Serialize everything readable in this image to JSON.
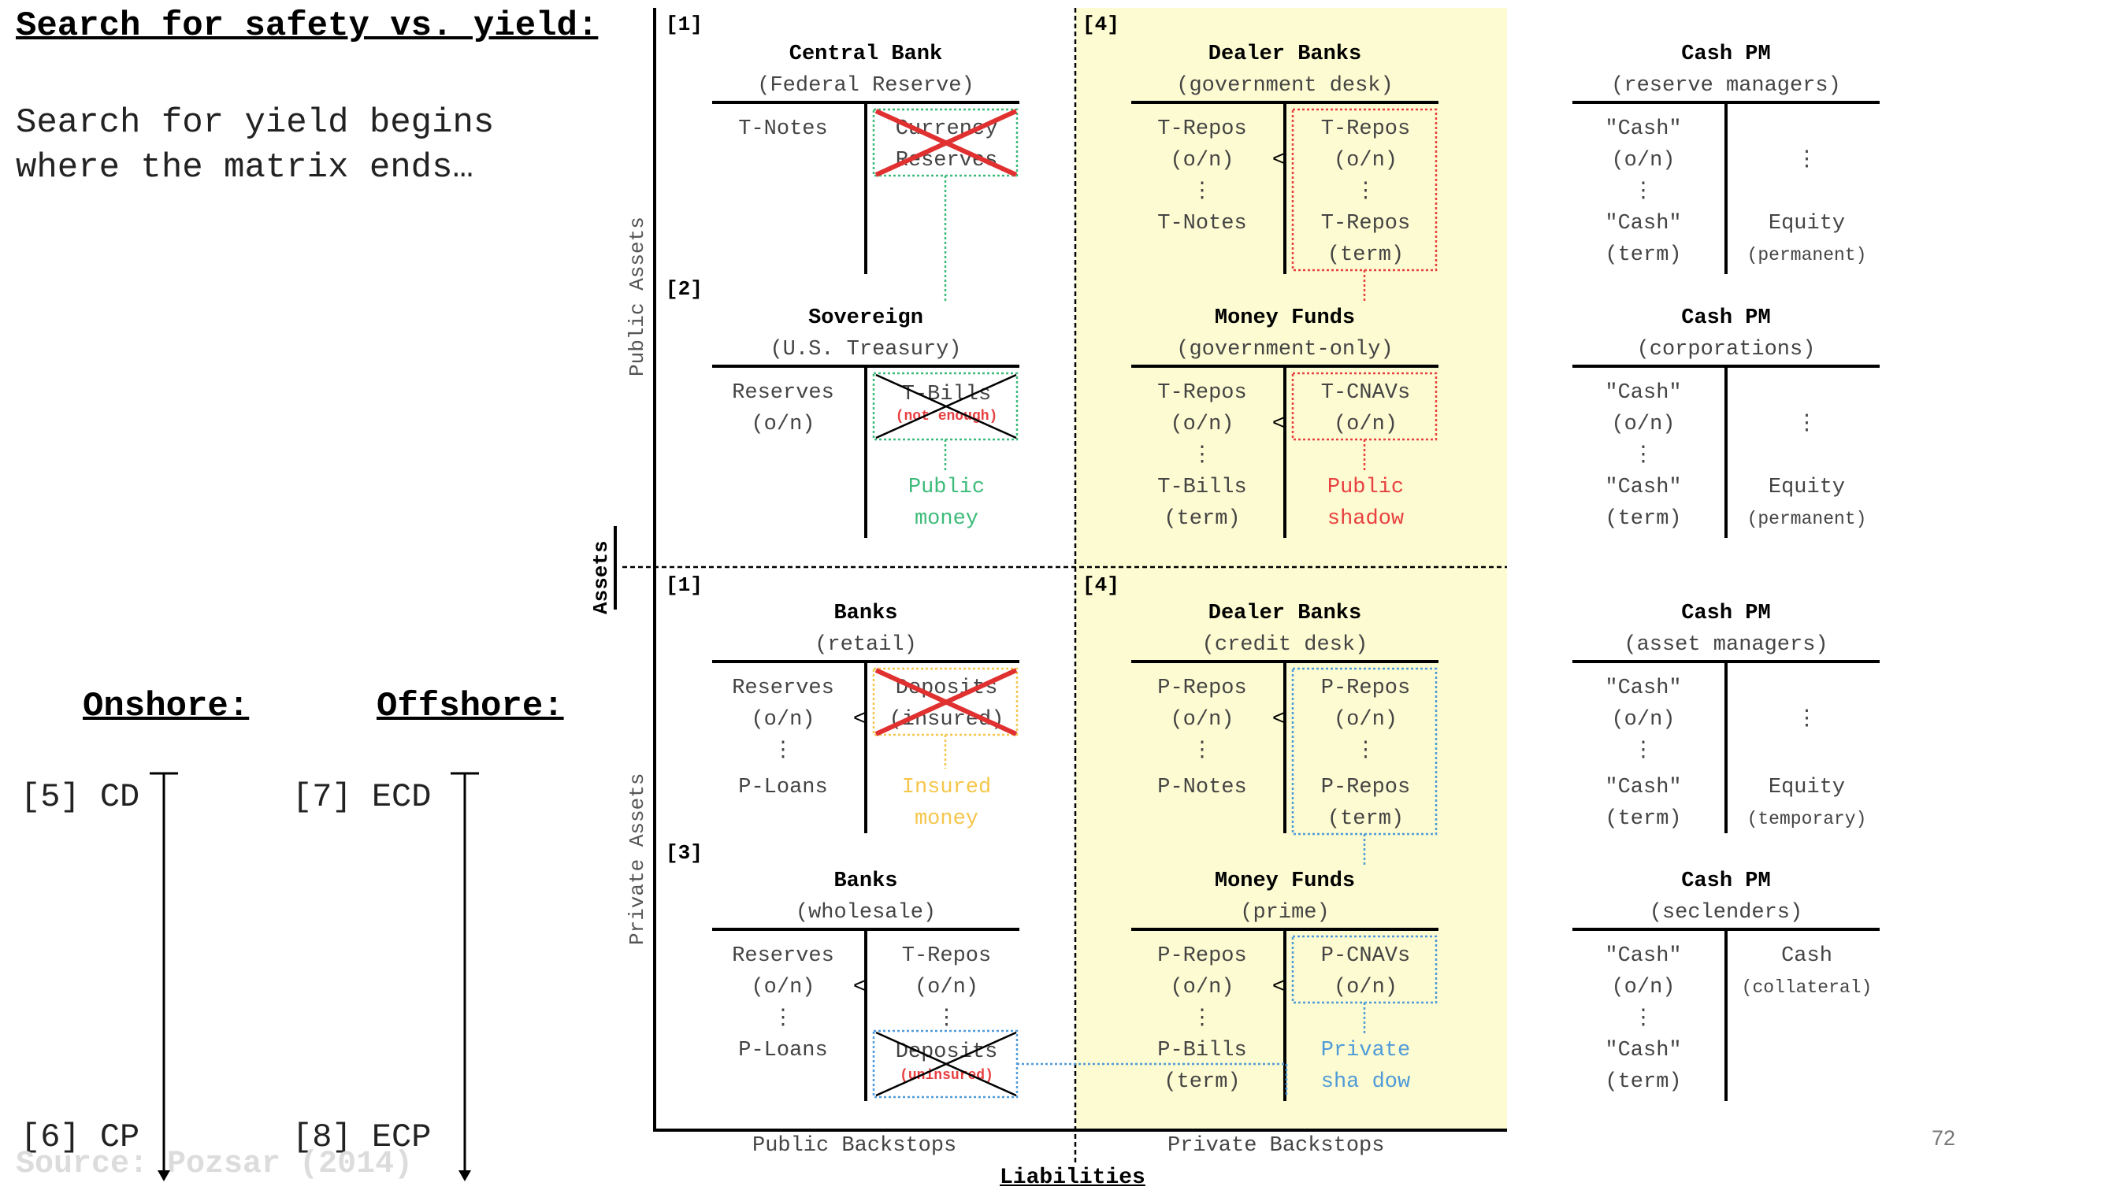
{
  "title": "Search for safety vs. yield:",
  "subtitle": "Search for yield begins\nwhere the matrix ends…",
  "source": "Source: Pozsar (2014)",
  "page_number": "72",
  "onshore": {
    "heading": "Onshore:",
    "top": "[5] CD",
    "bottom": "[6] CP"
  },
  "offshore": {
    "heading": "Offshore:",
    "top": "[7] ECD",
    "bottom": "[8] ECP"
  },
  "axes": {
    "assets": "Assets",
    "public_assets": "Public Assets",
    "private_assets": "Private Assets",
    "liabilities": "Liabilities",
    "public_backstops": "Public Backstops",
    "private_backstops": "Private Backstops"
  },
  "tags": {
    "t1": "[1]",
    "t2": "[2]",
    "t4": "[4]",
    "t1b": "[1]",
    "t4b": "[4]",
    "t3": "[3]"
  },
  "colors": {
    "highlight": "#fdfbd1",
    "green": "#3dbb7a",
    "red": "#e84040",
    "orange": "#f5c64a",
    "blue": "#4f9bd9"
  },
  "sheets": {
    "central_bank": {
      "title": "Central Bank",
      "sub": "(Federal Reserve)",
      "a1": "T-Notes",
      "l1": "Currency",
      "l2": "Reserves"
    },
    "sovereign": {
      "title": "Sovereign",
      "sub": "(U.S. Treasury)",
      "a1": "Reserves",
      "a2": "(o/n)",
      "l1": "T-Bills",
      "l1note": "(not enough)",
      "n1": "Public",
      "n2": "money"
    },
    "banks_retail": {
      "title": "Banks",
      "sub": "(retail)",
      "a1": "Reserves",
      "a2": "(o/n)",
      "a3": "⋮",
      "a4": "P-Loans",
      "l1": "Deposits",
      "l2": "(insured)",
      "n1": "Insured",
      "n2": "money",
      "lt": "<"
    },
    "banks_wholesale": {
      "title": "Banks",
      "sub": "(wholesale)",
      "a1": "Reserves",
      "a2": "(o/n)",
      "a3": "⋮",
      "a4": "P-Loans",
      "l1": "T-Repos",
      "l2": "(o/n)",
      "l3": "⋮",
      "l4": "Deposits",
      "l4note": "(uninsured)",
      "lt": "<"
    },
    "dealer_gov": {
      "title": "Dealer Banks",
      "sub": "(government desk)",
      "a1": "T-Repos",
      "a2": "(o/n)",
      "a3": "⋮",
      "a4": "T-Notes",
      "l1": "T-Repos",
      "l2": "(o/n)",
      "l3": "⋮",
      "l4": "T-Repos",
      "l5": "(term)",
      "lt": "<"
    },
    "mmf_gov": {
      "title": "Money Funds",
      "sub": "(government-only)",
      "a1": "T-Repos",
      "a2": "(o/n)",
      "a3": "⋮",
      "a4": "T-Bills",
      "a5": "(term)",
      "l1": "T-CNAVs",
      "l2": "(o/n)",
      "n1": "Public",
      "n2": "shadow",
      "lt": "<"
    },
    "dealer_credit": {
      "title": "Dealer Banks",
      "sub": "(credit desk)",
      "a1": "P-Repos",
      "a2": "(o/n)",
      "a3": "⋮",
      "a4": "P-Notes",
      "l1": "P-Repos",
      "l2": "(o/n)",
      "l3": "⋮",
      "l4": "P-Repos",
      "l5": "(term)",
      "lt": "<"
    },
    "mmf_prime": {
      "title": "Money Funds",
      "sub": "(prime)",
      "a1": "P-Repos",
      "a2": "(o/n)",
      "a3": "⋮",
      "a4": "P-Bills",
      "a5": "(term)",
      "l1": "P-CNAVs",
      "l2": "(o/n)",
      "n1": "Private",
      "n2": "sha dow",
      "lt": "<"
    },
    "cashpm_reserve": {
      "title": "Cash PM",
      "sub": "(reserve managers)",
      "a1": "\"Cash\"",
      "a2": "(o/n)",
      "a3": "⋮",
      "a4": "\"Cash\"",
      "a5": "(term)",
      "l1": "⋮",
      "l2": "Equity",
      "l3": "(permanent)"
    },
    "cashpm_corp": {
      "title": "Cash PM",
      "sub": "(corporations)",
      "a1": "\"Cash\"",
      "a2": "(o/n)",
      "a3": "⋮",
      "a4": "\"Cash\"",
      "a5": "(term)",
      "l1": "⋮",
      "l2": "Equity",
      "l3": "(permanent)"
    },
    "cashpm_asset": {
      "title": "Cash PM",
      "sub": "(asset managers)",
      "a1": "\"Cash\"",
      "a2": "(o/n)",
      "a3": "⋮",
      "a4": "\"Cash\"",
      "a5": "(term)",
      "l1": "⋮",
      "l2": "Equity",
      "l3": "(temporary)"
    },
    "cashpm_sec": {
      "title": "Cash PM",
      "sub": "(seclenders)",
      "a1": "\"Cash\"",
      "a2": "(o/n)",
      "a3": "⋮",
      "a4": "\"Cash\"",
      "a5": "(term)",
      "l1": "Cash",
      "l2": "(collateral)"
    }
  }
}
